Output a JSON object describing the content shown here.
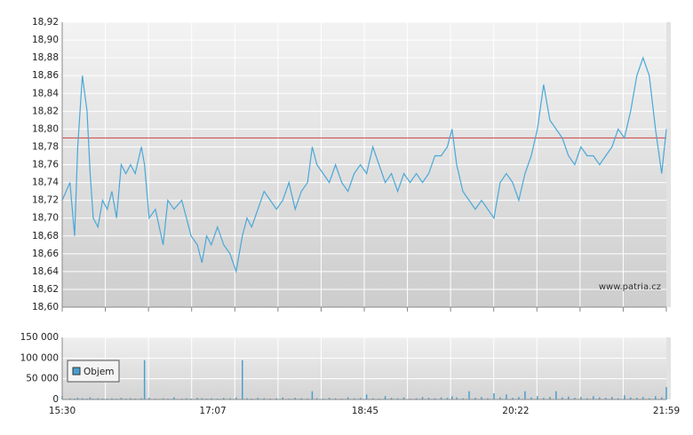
{
  "chart_data": [
    {
      "type": "line",
      "annotation": "www.patria.cz",
      "x": [
        "15:30",
        "15:35",
        "15:38",
        "15:40",
        "15:43",
        "15:46",
        "15:48",
        "15:50",
        "15:53",
        "15:56",
        "15:59",
        "16:02",
        "16:05",
        "16:08",
        "16:11",
        "16:14",
        "16:17",
        "16:21",
        "16:23",
        "16:26",
        "16:30",
        "16:35",
        "16:38",
        "16:42",
        "16:47",
        "16:50",
        "16:53",
        "16:57",
        "17:00",
        "17:03",
        "17:06",
        "17:10",
        "17:14",
        "17:18",
        "17:22",
        "17:26",
        "17:29",
        "17:32",
        "17:36",
        "17:40",
        "17:44",
        "17:48",
        "17:52",
        "17:56",
        "18:00",
        "18:04",
        "18:08",
        "18:11",
        "18:14",
        "18:18",
        "18:22",
        "18:26",
        "18:30",
        "18:34",
        "18:38",
        "18:42",
        "18:46",
        "18:50",
        "18:54",
        "18:58",
        "19:02",
        "19:06",
        "19:10",
        "19:14",
        "19:18",
        "19:22",
        "19:26",
        "19:30",
        "19:34",
        "19:38",
        "19:41",
        "19:44",
        "19:48",
        "19:52",
        "19:56",
        "20:00",
        "20:04",
        "20:08",
        "20:12",
        "20:16",
        "20:20",
        "20:24",
        "20:28",
        "20:32",
        "20:36",
        "20:40",
        "20:44",
        "20:48",
        "20:52",
        "20:56",
        "21:00",
        "21:04",
        "21:08",
        "21:12",
        "21:16",
        "21:20",
        "21:24",
        "21:28",
        "21:32",
        "21:36",
        "21:40",
        "21:44",
        "21:48",
        "21:52",
        "21:56",
        "21:59"
      ],
      "values": [
        18.72,
        18.74,
        18.68,
        18.78,
        18.86,
        18.82,
        18.75,
        18.7,
        18.69,
        18.72,
        18.71,
        18.73,
        18.7,
        18.76,
        18.75,
        18.76,
        18.75,
        18.78,
        18.76,
        18.7,
        18.71,
        18.67,
        18.72,
        18.71,
        18.72,
        18.7,
        18.68,
        18.67,
        18.65,
        18.68,
        18.67,
        18.69,
        18.67,
        18.66,
        18.64,
        18.68,
        18.7,
        18.69,
        18.71,
        18.73,
        18.72,
        18.71,
        18.72,
        18.74,
        18.71,
        18.73,
        18.74,
        18.78,
        18.76,
        18.75,
        18.74,
        18.76,
        18.74,
        18.73,
        18.75,
        18.76,
        18.75,
        18.78,
        18.76,
        18.74,
        18.75,
        18.73,
        18.75,
        18.74,
        18.75,
        18.74,
        18.75,
        18.77,
        18.77,
        18.78,
        18.8,
        18.76,
        18.73,
        18.72,
        18.71,
        18.72,
        18.71,
        18.7,
        18.74,
        18.75,
        18.74,
        18.72,
        18.75,
        18.77,
        18.8,
        18.85,
        18.81,
        18.8,
        18.79,
        18.77,
        18.76,
        18.78,
        18.77,
        18.77,
        18.76,
        18.77,
        18.78,
        18.8,
        18.79,
        18.82,
        18.86,
        18.88,
        18.86,
        18.8,
        18.75,
        18.8
      ],
      "color": "#4aa8d8",
      "reference_line": {
        "value": 18.79,
        "color": "#d04040"
      },
      "xlim": [
        "15:30",
        "21:59"
      ],
      "ylim": [
        18.6,
        18.92
      ],
      "yticks": [
        {
          "value": 18.6,
          "label": "18,60"
        },
        {
          "value": 18.62,
          "label": "18,62"
        },
        {
          "value": 18.64,
          "label": "18,64"
        },
        {
          "value": 18.66,
          "label": "18,66"
        },
        {
          "value": 18.68,
          "label": "18,68"
        },
        {
          "value": 18.7,
          "label": "18,70"
        },
        {
          "value": 18.72,
          "label": "18,72"
        },
        {
          "value": 18.74,
          "label": "18,74"
        },
        {
          "value": 18.76,
          "label": "18,76"
        },
        {
          "value": 18.78,
          "label": "18,78"
        },
        {
          "value": 18.8,
          "label": "18,80"
        },
        {
          "value": 18.82,
          "label": "18,82"
        },
        {
          "value": 18.84,
          "label": "18,84"
        },
        {
          "value": 18.86,
          "label": "18,86"
        },
        {
          "value": 18.88,
          "label": "18,88"
        },
        {
          "value": 18.9,
          "label": "18,90"
        },
        {
          "value": 18.92,
          "label": "18,92"
        }
      ],
      "grid": true
    },
    {
      "type": "bar",
      "series": [
        {
          "name": "Objem",
          "color": "#4a9fd0",
          "values": [
            8000,
            3000,
            2000,
            4000,
            3000,
            2000,
            5000,
            2000,
            3000,
            2000,
            2000,
            3000,
            2000,
            4000,
            2000,
            3000,
            2000,
            3000,
            95000,
            4000,
            2000,
            3000,
            2000,
            5000,
            2000,
            3000,
            2000,
            4000,
            3000,
            2000,
            3000,
            2000,
            4000,
            3000,
            5000,
            95000,
            3000,
            2000,
            4000,
            3000,
            2000,
            3000,
            5000,
            2000,
            4000,
            3000,
            2000,
            20000,
            3000,
            2000,
            4000,
            3000,
            2000,
            5000,
            3000,
            4000,
            12000,
            3000,
            2000,
            8000,
            4000,
            3000,
            5000,
            2000,
            3000,
            6000,
            4000,
            3000,
            5000,
            4000,
            8000,
            5000,
            3000,
            20000,
            4000,
            6000,
            3000,
            15000,
            5000,
            12000,
            4000,
            6000,
            20000,
            5000,
            8000,
            4000,
            6000,
            20000,
            5000,
            7000,
            4000,
            6000,
            3000,
            8000,
            5000,
            4000,
            6000,
            3000,
            10000,
            5000,
            4000,
            6000,
            3000,
            8000,
            5000,
            30000
          ]
        }
      ],
      "xlim": [
        "15:30",
        "21:59"
      ],
      "xticks": [
        "15:30",
        "17:07",
        "18:45",
        "20:22",
        "21:59"
      ],
      "ylim": [
        0,
        150000
      ],
      "yticks": [
        0,
        {
          "value": 50000,
          "label": "50 000"
        },
        {
          "value": 100000,
          "label": "100 000"
        },
        {
          "value": 150000,
          "label": "150 000"
        }
      ],
      "grid": true,
      "legend": "top-left"
    }
  ]
}
